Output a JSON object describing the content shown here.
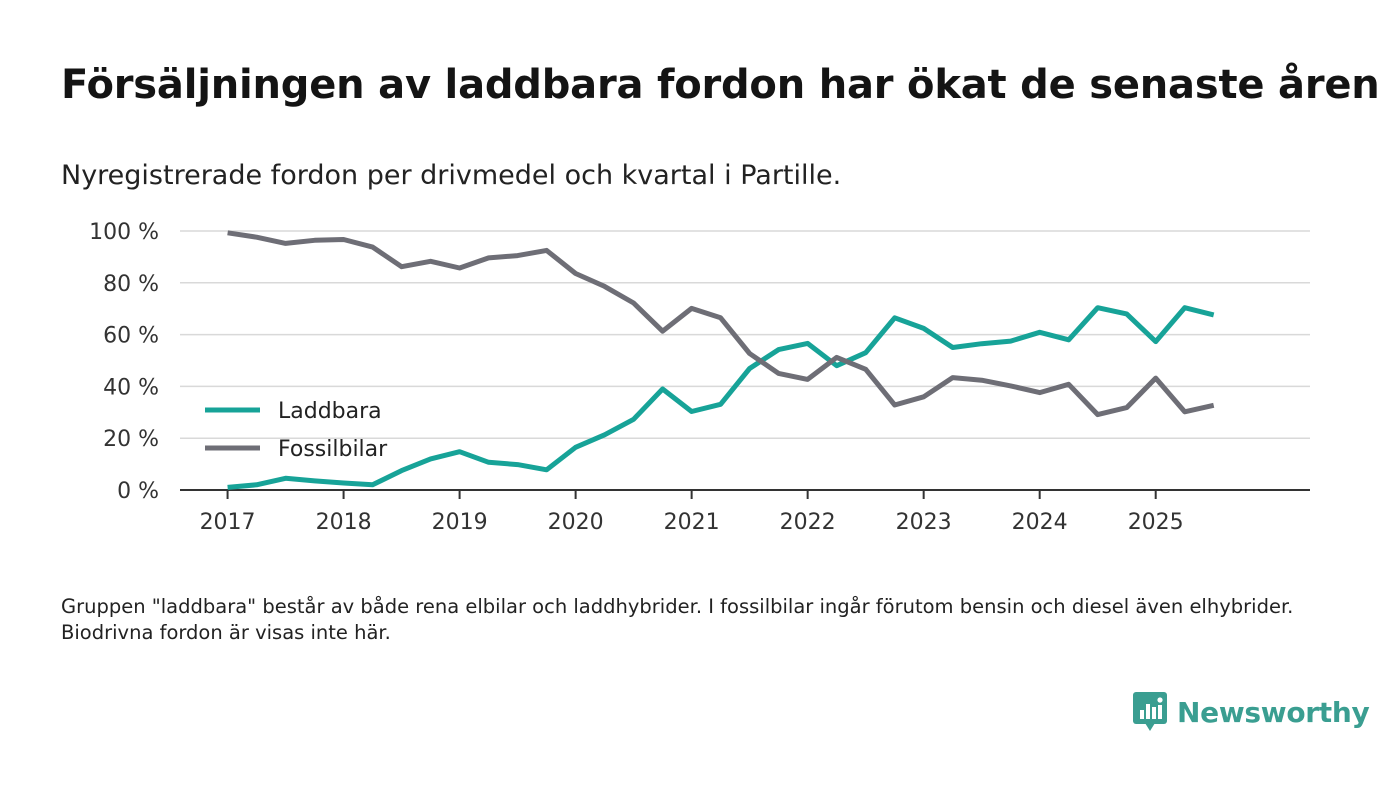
{
  "header": {
    "title": "Försäljningen av laddbara fordon har ökat de senaste åren",
    "subtitle": "Nyregistrerade fordon per drivmedel och kvartal i Partille."
  },
  "footnote": "Gruppen \"laddbara\" består av både rena elbilar och laddhybrider. I fossilbilar ingår förutom bensin och diesel även elhybrider. Biodrivna fordon är visas inte här.",
  "brand": {
    "name": "Newsworthy",
    "icon": "newsworthy-logo-icon",
    "color": "#3a9e91"
  },
  "chart_data": {
    "type": "line",
    "title": "Försäljningen av laddbara fordon har ökat de senaste åren",
    "subtitle": "Nyregistrerade fordon per drivmedel och kvartal i Partille.",
    "xlabel": "",
    "ylabel": "",
    "xlim": [
      2017,
      2026.33
    ],
    "ylim": [
      0,
      100
    ],
    "grid": true,
    "legend_position": "left-middle",
    "x_ticks": [
      2017,
      2018,
      2019,
      2020,
      2021,
      2022,
      2023,
      2024,
      2025
    ],
    "x_tick_labels": [
      "2017",
      "2018",
      "2019",
      "2020",
      "2021",
      "2022",
      "2023",
      "2024",
      "2025"
    ],
    "y_ticks": [
      0,
      20,
      40,
      60,
      80,
      100
    ],
    "y_tick_labels": [
      "0 %",
      "20 %",
      "40 %",
      "60 %",
      "80 %",
      "100 %"
    ],
    "x": [
      2017.0,
      2017.25,
      2017.5,
      2017.75,
      2018.0,
      2018.25,
      2018.5,
      2018.75,
      2019.0,
      2019.25,
      2019.5,
      2019.75,
      2020.0,
      2020.25,
      2020.5,
      2020.75,
      2021.0,
      2021.25,
      2021.5,
      2021.75,
      2022.0,
      2022.25,
      2022.5,
      2022.75,
      2023.0,
      2023.25,
      2023.5,
      2023.75,
      2024.0,
      2024.25,
      2024.5,
      2024.75,
      2025.0,
      2025.25,
      2025.5
    ],
    "series": [
      {
        "name": "Laddbara",
        "color": "#17a398",
        "values": [
          1,
          2,
          4.5,
          3.5,
          2.7,
          2,
          7.5,
          12,
          14.8,
          10.7,
          9.8,
          7.8,
          16.5,
          21.3,
          27.3,
          39,
          30.3,
          33.1,
          46.9,
          54.2,
          56.6,
          48,
          53,
          66.5,
          62.4,
          55,
          56.5,
          57.5,
          60.9,
          58,
          70.4,
          68,
          57.3,
          70.4,
          67.6
        ]
      },
      {
        "name": "Fossilbilar",
        "color": "#6e6e76",
        "values": [
          99.3,
          97.6,
          95.2,
          96.4,
          96.7,
          93.8,
          86.2,
          88.3,
          85.7,
          89.6,
          90.5,
          92.5,
          83.6,
          78.6,
          72.2,
          61.3,
          70.1,
          66.5,
          52.7,
          45,
          42.7,
          51.2,
          46.6,
          32.8,
          36,
          43.4,
          42.4,
          40.2,
          37.6,
          40.8,
          29.1,
          31.8,
          43.2,
          30.2,
          32.7
        ]
      }
    ]
  }
}
